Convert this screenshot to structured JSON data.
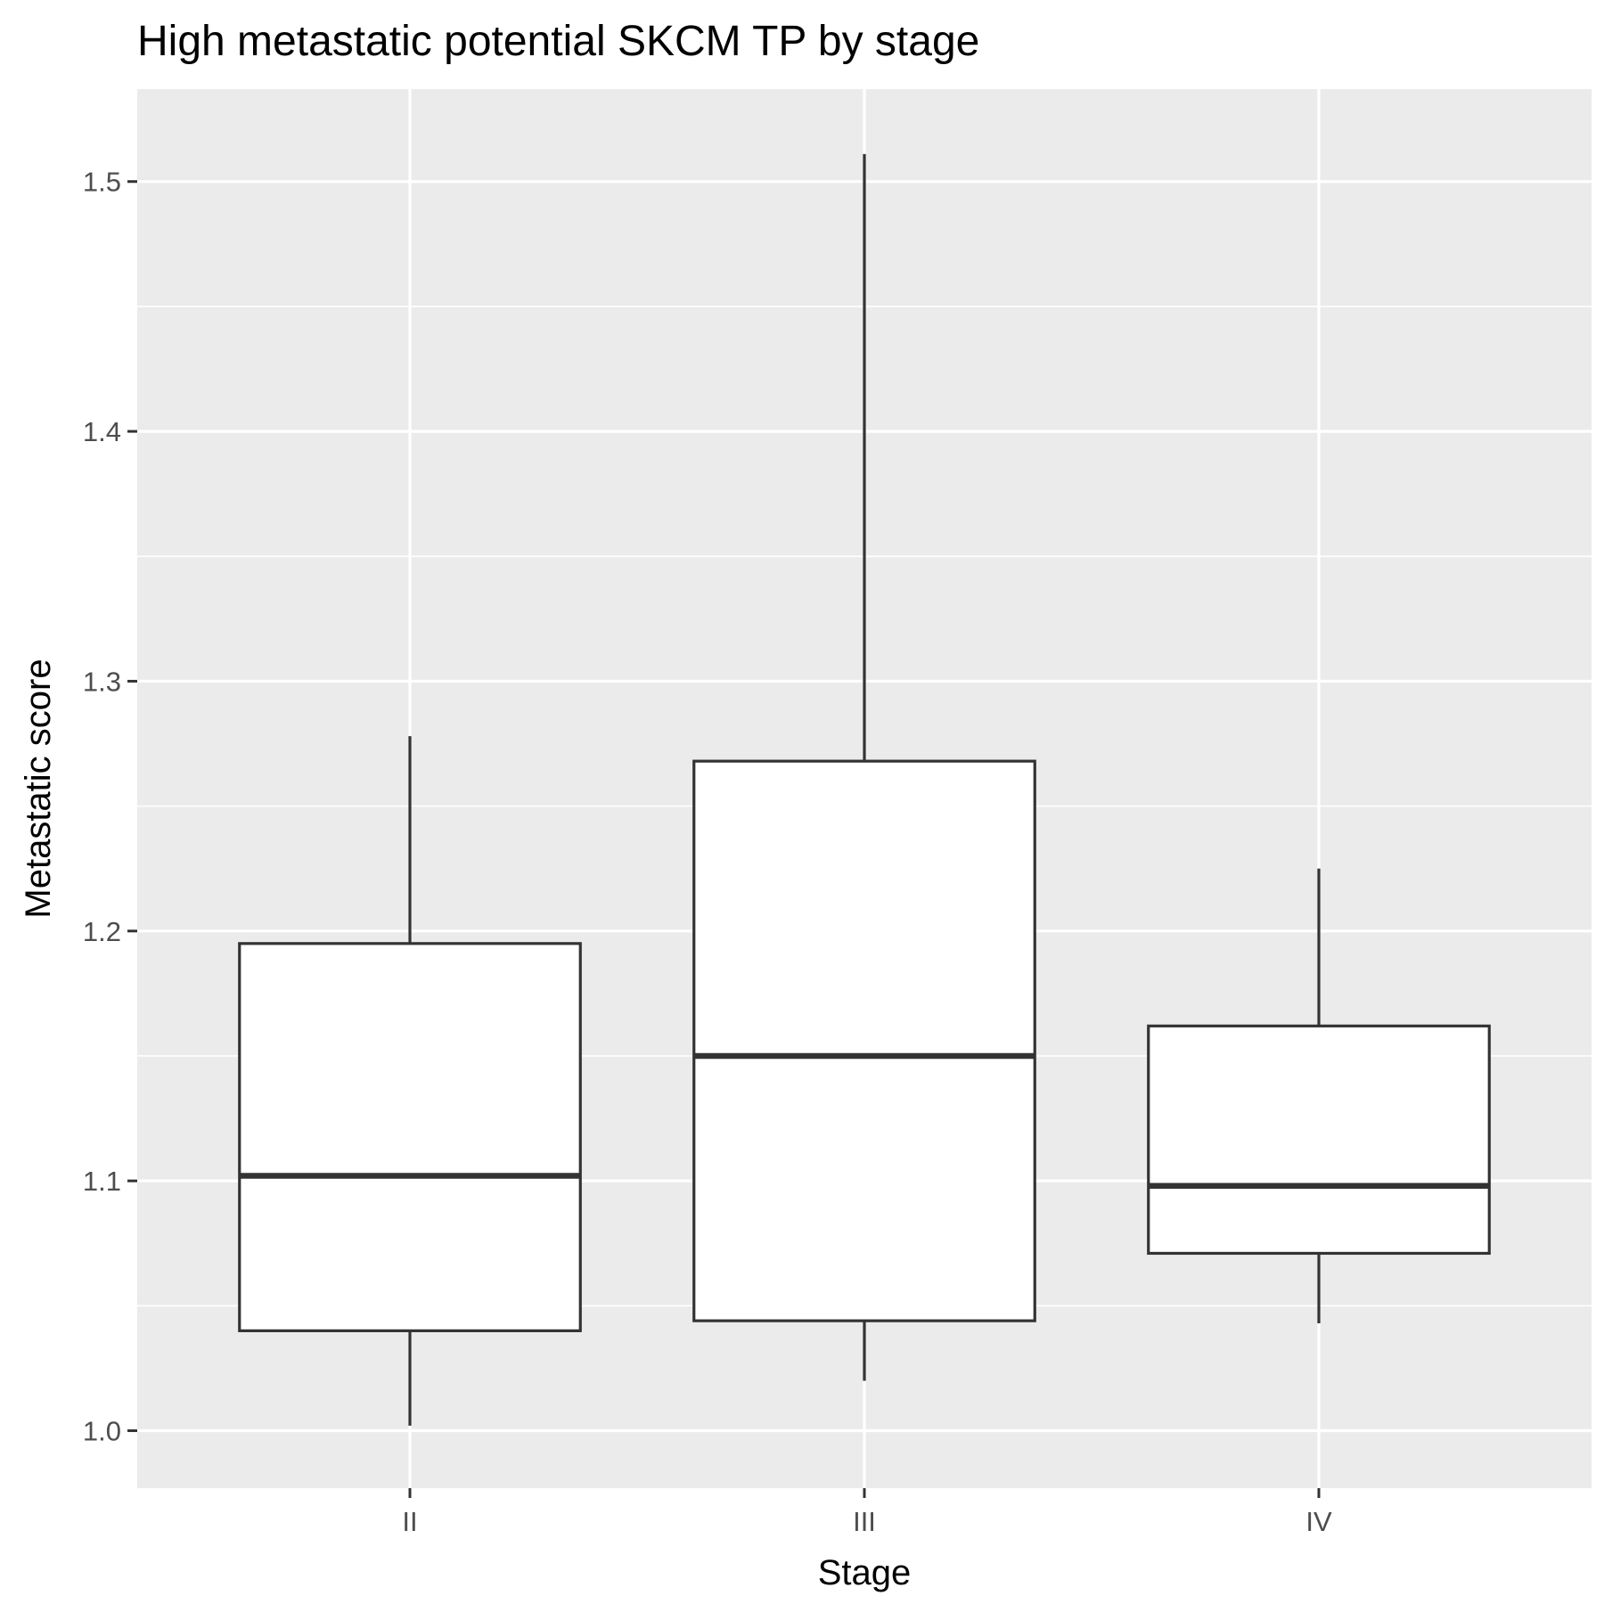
{
  "chart_data": {
    "type": "box",
    "title": "High metastatic potential SKCM TP by stage",
    "xlabel": "Stage",
    "ylabel": "Metastatic score",
    "categories": [
      "II",
      "III",
      "IV"
    ],
    "y_ticks": [
      1.0,
      1.1,
      1.2,
      1.3,
      1.4,
      1.5
    ],
    "y_tick_labels": [
      "1.0",
      "1.1",
      "1.2",
      "1.3",
      "1.4",
      "1.5"
    ],
    "ylim": [
      0.977,
      1.537
    ],
    "grid": true,
    "boxes": [
      {
        "category": "II",
        "min": 1.002,
        "q1": 1.04,
        "median": 1.102,
        "q3": 1.195,
        "max": 1.278
      },
      {
        "category": "III",
        "min": 1.02,
        "q1": 1.044,
        "median": 1.15,
        "q3": 1.268,
        "max": 1.511
      },
      {
        "category": "IV",
        "min": 1.043,
        "q1": 1.071,
        "median": 1.098,
        "q3": 1.162,
        "max": 1.225
      }
    ],
    "colors": {
      "panel": "#ebebeb",
      "box_fill": "#ffffff",
      "box_line": "#333333",
      "grid": "#ffffff"
    }
  }
}
